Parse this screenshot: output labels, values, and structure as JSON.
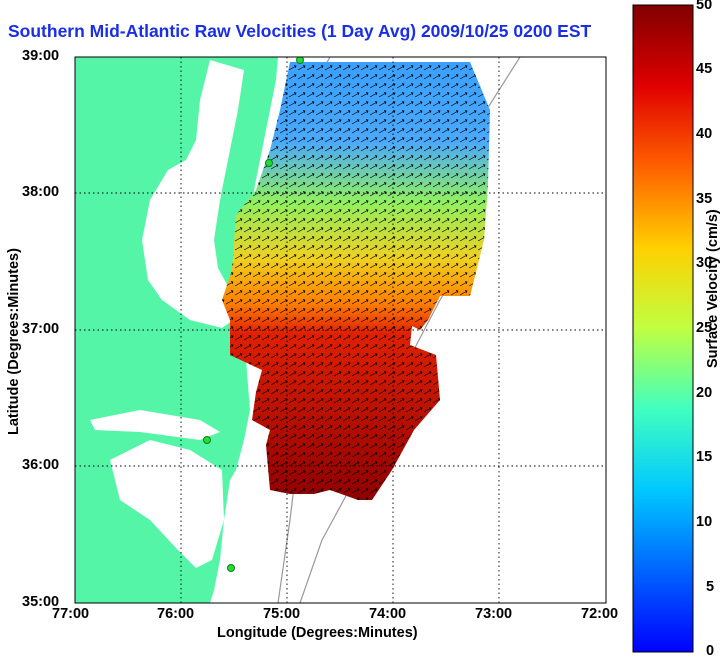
{
  "title": "Southern Mid-Atlantic Raw Velocities (1 Day Avg) 2009/10/25 0200 EST",
  "axes": {
    "xlabel": "Longitude (Degrees:Minutes)",
    "ylabel": "Latitude (Degrees:Minutes)",
    "xticks": [
      "77:00",
      "76:00",
      "75:00",
      "74:00",
      "73:00",
      "72:00"
    ],
    "yticks": [
      "39:00",
      "38:00",
      "37:00",
      "36:00",
      "35:00"
    ]
  },
  "colorbar": {
    "label": "Surface Velocity (cm/s)",
    "ticks": [
      "50",
      "45",
      "40",
      "35",
      "30",
      "25",
      "20",
      "15",
      "10",
      "5",
      "0"
    ],
    "min": 0,
    "max": 50
  },
  "colors": {
    "land": "#55f5a8",
    "water": "#ffffff",
    "title": "#1a2ee6"
  },
  "map": {
    "lon_range": [
      -77,
      -72
    ],
    "lat_range": [
      35,
      39
    ],
    "grid": "dotted"
  }
}
